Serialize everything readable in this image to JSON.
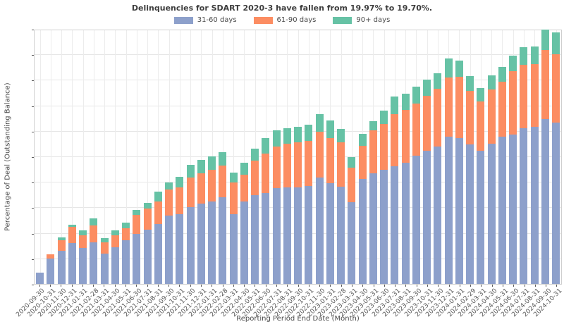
{
  "title": "Delinquencies for SDART 2020-3 have fallen from 19.97% to 19.70%.",
  "chart_data": {
    "type": "bar",
    "stacked": true,
    "title": "Delinquencies for SDART 2020-3 have fallen from 19.97% to 19.70%.",
    "xlabel": "Reporting Period End Date (Month)",
    "ylabel": "Percentage of Deal (Outstanding Balance)",
    "ylim": [
      0,
      20
    ],
    "ytick_step": 2,
    "ytick_format": "percent-2dp",
    "grid": true,
    "legend_position": "top-center",
    "categories": [
      "2020-09-30",
      "2020-10-31",
      "2020-11-30",
      "2020-12-31",
      "2021-01-31",
      "2021-02-28",
      "2021-03-31",
      "2021-04-30",
      "2021-05-31",
      "2021-06-30",
      "2021-07-31",
      "2021-08-31",
      "2021-09-30",
      "2021-10-31",
      "2021-11-30",
      "2021-12-31",
      "2022-01-31",
      "2022-02-28",
      "2022-03-31",
      "2022-04-30",
      "2022-05-31",
      "2022-06-30",
      "2022-07-31",
      "2022-08-31",
      "2022-09-30",
      "2022-10-31",
      "2022-11-30",
      "2023-01-31",
      "2023-02-28",
      "2023-03-31",
      "2023-04-30",
      "2023-05-31",
      "2023-06-30",
      "2023-07-31",
      "2023-08-31",
      "2023-09-30",
      "2023-10-31",
      "2023-11-30",
      "2023-12-31",
      "2024-01-31",
      "2024-02-29",
      "2024-03-31",
      "2024-04-30",
      "2024-05-31",
      "2024-06-30",
      "2024-07-31",
      "2024-08-31",
      "2024-09-30",
      "2024-10-31"
    ],
    "series": [
      {
        "name": "31-60 days",
        "color": "#8da0cb",
        "values": [
          0.88,
          1.97,
          2.6,
          3.2,
          2.8,
          3.25,
          2.4,
          2.9,
          3.4,
          3.95,
          4.27,
          4.7,
          5.38,
          5.47,
          6.02,
          6.3,
          6.48,
          6.81,
          5.47,
          6.45,
          6.94,
          7.13,
          7.49,
          7.55,
          7.59,
          7.68,
          8.36,
          7.92,
          7.62,
          6.39,
          8.23,
          8.66,
          8.97,
          9.24,
          9.52,
          10.07,
          10.44,
          10.75,
          11.55,
          11.42,
          10.94,
          10.44,
          10.99,
          11.55,
          11.73,
          12.23,
          12.32,
          12.95,
          12.65
        ]
      },
      {
        "name": "61-90 days",
        "color": "#fc8d62",
        "values": [
          0.0,
          0.37,
          0.85,
          1.27,
          1.0,
          1.35,
          0.85,
          0.9,
          0.95,
          1.44,
          1.62,
          1.75,
          2.02,
          2.12,
          2.3,
          2.39,
          2.49,
          2.47,
          2.49,
          2.09,
          2.71,
          3.07,
          3.26,
          3.44,
          3.53,
          3.55,
          3.55,
          3.53,
          3.46,
          2.73,
          2.58,
          3.4,
          3.55,
          4.05,
          4.14,
          4.05,
          4.33,
          4.54,
          4.65,
          4.82,
          4.2,
          3.87,
          4.24,
          4.32,
          4.97,
          4.93,
          4.93,
          5.4,
          5.35
        ]
      },
      {
        "name": "90+ days",
        "color": "#66c2a5",
        "values": [
          0.0,
          0.0,
          0.18,
          0.2,
          0.4,
          0.55,
          0.35,
          0.4,
          0.45,
          0.44,
          0.44,
          0.77,
          0.55,
          0.83,
          1.02,
          1.05,
          1.05,
          1.03,
          0.77,
          0.98,
          0.98,
          1.22,
          1.31,
          1.2,
          1.22,
          1.26,
          1.42,
          1.37,
          1.07,
          0.82,
          0.98,
          0.72,
          1.09,
          1.42,
          1.24,
          1.35,
          1.25,
          1.23,
          1.46,
          1.29,
          1.14,
          1.05,
          1.1,
          1.14,
          1.2,
          1.38,
          1.35,
          1.62,
          1.7
        ]
      }
    ],
    "summary": {
      "from_value": "19.97%",
      "to_value": "19.70%",
      "deal": "SDART 2020-3"
    }
  },
  "colors": {
    "grid": "#e6e6e6",
    "vgrid": "#ececec",
    "spine": "#cfcfcf",
    "title_text": "#3d3d3d",
    "tick_text": "#5a5a5a"
  }
}
